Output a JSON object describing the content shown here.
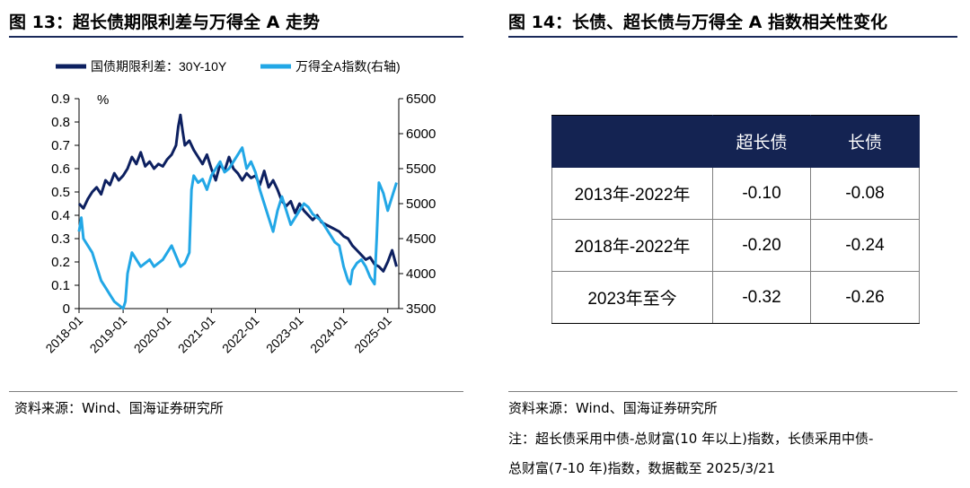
{
  "figure13": {
    "title": "图 13：超长债期限利差与万得全 A 走势",
    "source": "资料来源：Wind、国海证券研究所"
  },
  "figure14": {
    "title": "图 14：长债、超长债与万得全 A 指数相关性变化",
    "source": "资料来源：Wind、国海证券研究所",
    "note_line1": "注：超长债采用中债-总财富(10 年以上)指数，长债采用中债-",
    "note_line2": "总财富(7-10 年)指数，数据截至 2025/3/21",
    "table": {
      "headers": [
        "",
        "超长债",
        "长债"
      ],
      "rows": [
        [
          "2013年-2022年",
          "-0.10",
          "-0.08"
        ],
        [
          "2018年-2022年",
          "-0.20",
          "-0.24"
        ],
        [
          "2023年至今",
          "-0.32",
          "-0.26"
        ]
      ]
    }
  },
  "chart_data": {
    "type": "line",
    "title": "",
    "left_unit_label": "%",
    "x_ticks": [
      "2018-01",
      "2019-01",
      "2020-01",
      "2021-01",
      "2022-01",
      "2023-01",
      "2024-01",
      "2025-01"
    ],
    "x_range": [
      2018.0,
      2025.25
    ],
    "y_left": {
      "range": [
        0,
        0.9
      ],
      "ticks": [
        "0",
        "0.1",
        "0.2",
        "0.3",
        "0.4",
        "0.5",
        "0.6",
        "0.7",
        "0.8",
        "0.9"
      ]
    },
    "y_right": {
      "range": [
        3500,
        6500
      ],
      "ticks": [
        "3500",
        "4000",
        "4500",
        "5000",
        "5500",
        "6000",
        "6500"
      ]
    },
    "series": [
      {
        "name": "国债期限利差：30Y-10Y",
        "axis": "left",
        "color": "#0d2060",
        "x": [
          2018.0,
          2018.1,
          2018.2,
          2018.3,
          2018.4,
          2018.5,
          2018.6,
          2018.7,
          2018.8,
          2018.9,
          2019.0,
          2019.1,
          2019.2,
          2019.3,
          2019.4,
          2019.5,
          2019.6,
          2019.7,
          2019.8,
          2019.9,
          2020.0,
          2020.1,
          2020.2,
          2020.25,
          2020.3,
          2020.35,
          2020.4,
          2020.5,
          2020.6,
          2020.7,
          2020.8,
          2020.9,
          2021.0,
          2021.1,
          2021.2,
          2021.3,
          2021.4,
          2021.5,
          2021.6,
          2021.7,
          2021.8,
          2021.9,
          2022.0,
          2022.1,
          2022.2,
          2022.3,
          2022.4,
          2022.5,
          2022.6,
          2022.7,
          2022.8,
          2022.9,
          2023.0,
          2023.1,
          2023.2,
          2023.3,
          2023.4,
          2023.5,
          2023.6,
          2023.7,
          2023.8,
          2023.9,
          2024.0,
          2024.1,
          2024.2,
          2024.3,
          2024.4,
          2024.5,
          2024.6,
          2024.7,
          2024.8,
          2024.9,
          2025.0,
          2025.1,
          2025.2
        ],
        "y": [
          0.45,
          0.43,
          0.47,
          0.5,
          0.52,
          0.49,
          0.55,
          0.53,
          0.58,
          0.55,
          0.57,
          0.6,
          0.65,
          0.62,
          0.67,
          0.61,
          0.63,
          0.6,
          0.62,
          0.61,
          0.64,
          0.66,
          0.7,
          0.78,
          0.83,
          0.76,
          0.7,
          0.72,
          0.68,
          0.65,
          0.62,
          0.66,
          0.6,
          0.55,
          0.62,
          0.59,
          0.65,
          0.6,
          0.58,
          0.55,
          0.58,
          0.56,
          0.57,
          0.53,
          0.59,
          0.52,
          0.55,
          0.51,
          0.46,
          0.44,
          0.46,
          0.41,
          0.45,
          0.42,
          0.4,
          0.38,
          0.4,
          0.37,
          0.36,
          0.35,
          0.34,
          0.33,
          0.31,
          0.3,
          0.27,
          0.25,
          0.23,
          0.21,
          0.22,
          0.19,
          0.18,
          0.16,
          0.2,
          0.25,
          0.18
        ]
      },
      {
        "name": "万得全A指数(右轴)",
        "axis": "right",
        "color": "#22a7e6",
        "x": [
          2018.0,
          2018.05,
          2018.1,
          2018.2,
          2018.3,
          2018.4,
          2018.5,
          2018.6,
          2018.7,
          2018.8,
          2018.9,
          2019.0,
          2019.05,
          2019.1,
          2019.2,
          2019.3,
          2019.4,
          2019.5,
          2019.6,
          2019.7,
          2019.8,
          2019.9,
          2020.0,
          2020.1,
          2020.2,
          2020.3,
          2020.4,
          2020.5,
          2020.55,
          2020.6,
          2020.7,
          2020.8,
          2020.9,
          2021.0,
          2021.1,
          2021.2,
          2021.3,
          2021.4,
          2021.5,
          2021.6,
          2021.7,
          2021.8,
          2021.9,
          2022.0,
          2022.1,
          2022.2,
          2022.3,
          2022.4,
          2022.5,
          2022.6,
          2022.7,
          2022.8,
          2022.9,
          2023.0,
          2023.1,
          2023.2,
          2023.3,
          2023.4,
          2023.5,
          2023.6,
          2023.7,
          2023.8,
          2023.9,
          2024.0,
          2024.1,
          2024.15,
          2024.2,
          2024.3,
          2024.4,
          2024.5,
          2024.6,
          2024.7,
          2024.75,
          2024.8,
          2024.9,
          2025.0,
          2025.1,
          2025.2
        ],
        "y": [
          4600,
          4800,
          4500,
          4400,
          4300,
          4100,
          3900,
          3800,
          3700,
          3600,
          3550,
          3500,
          3600,
          4000,
          4300,
          4200,
          4100,
          4150,
          4200,
          4100,
          4150,
          4200,
          4300,
          4400,
          4250,
          4100,
          4150,
          4300,
          5200,
          5400,
          5300,
          5350,
          5200,
          5400,
          5500,
          5600,
          5450,
          5500,
          5600,
          5700,
          5800,
          5500,
          5600,
          5450,
          5200,
          5000,
          4800,
          4600,
          4900,
          5100,
          4900,
          4700,
          4800,
          4900,
          5000,
          4950,
          4850,
          4800,
          4750,
          4650,
          4550,
          4450,
          4400,
          4100,
          3900,
          3850,
          4050,
          4150,
          4200,
          4100,
          3950,
          3850,
          4500,
          5300,
          5150,
          4900,
          5100,
          5300
        ]
      }
    ]
  },
  "legend": {
    "s1": "国债期限利差：30Y-10Y",
    "s2": "万得全A指数(右轴)"
  }
}
